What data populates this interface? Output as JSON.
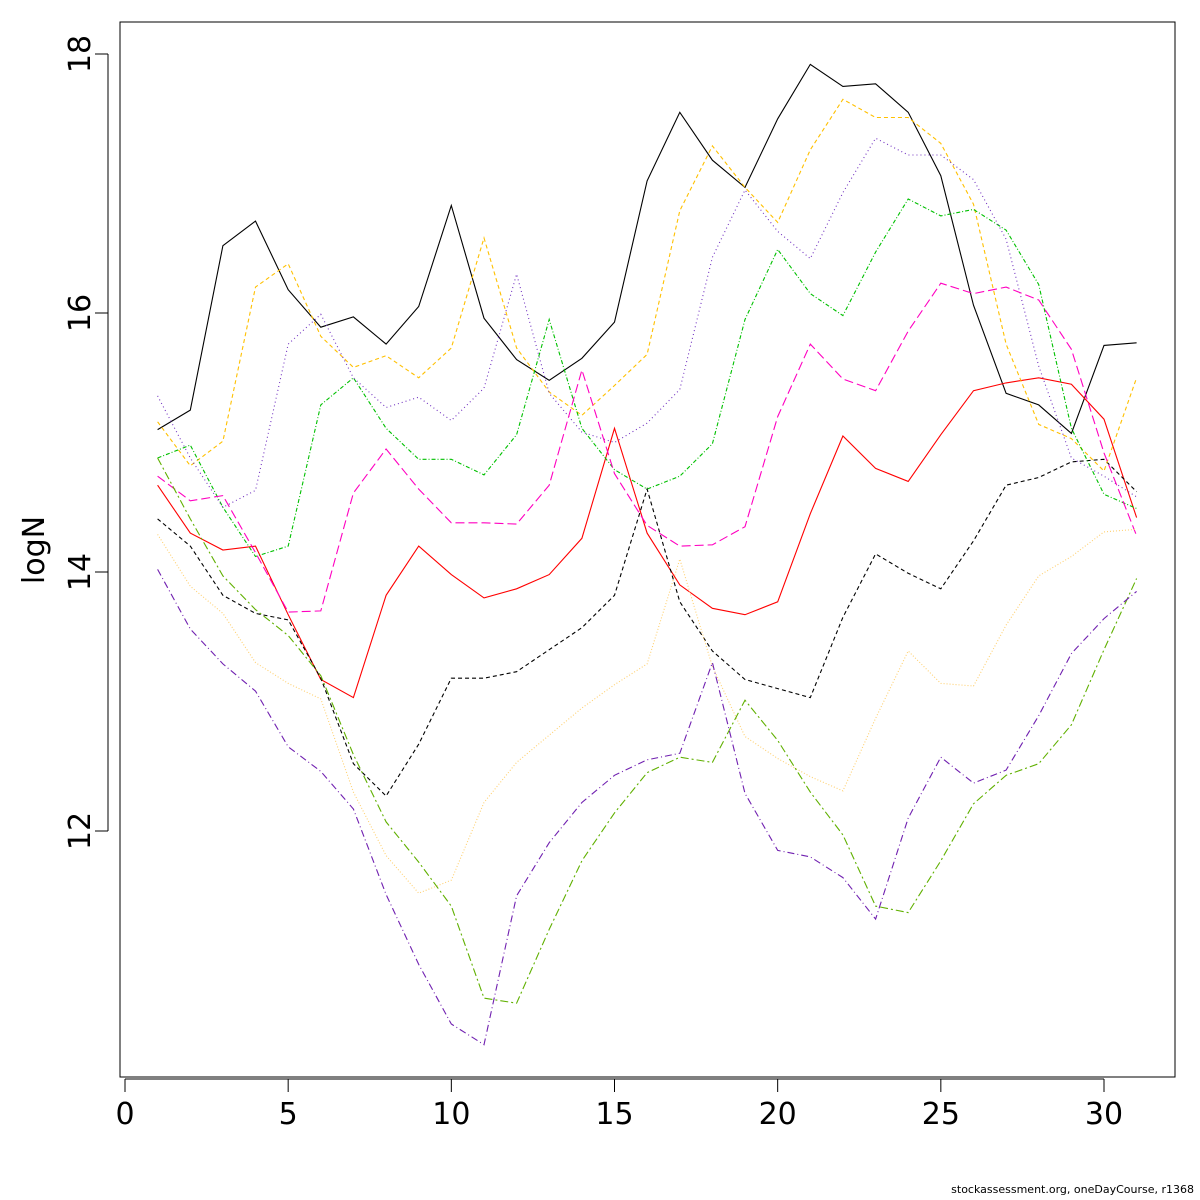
{
  "chart_data": {
    "type": "line",
    "title": "",
    "xlabel": "",
    "ylabel": "logN",
    "xlim": [
      0,
      32
    ],
    "ylim": [
      10.2,
      18.2
    ],
    "x_ticks": [
      0,
      5,
      10,
      15,
      20,
      25,
      30
    ],
    "y_ticks": [
      12,
      14,
      16,
      18
    ],
    "grid": false,
    "legend": "none",
    "x": [
      1,
      2,
      3,
      4,
      5,
      6,
      7,
      8,
      9,
      10,
      11,
      12,
      13,
      14,
      15,
      16,
      17,
      18,
      19,
      20,
      21,
      22,
      23,
      24,
      25,
      26,
      27,
      28,
      29,
      30,
      31
    ],
    "series": [
      {
        "color": "#000000",
        "dash": "",
        "values": [
          15.1,
          15.25,
          16.52,
          16.71,
          16.18,
          15.89,
          15.97,
          15.76,
          16.05,
          16.83,
          15.96,
          15.64,
          15.48,
          15.65,
          15.93,
          17.02,
          17.55,
          17.18,
          16.97,
          17.5,
          17.92,
          17.75,
          17.77,
          17.55,
          17.06,
          16.06,
          15.38,
          15.29,
          15.07,
          15.75,
          15.77
        ]
      },
      {
        "color": "#FF0000",
        "dash": "",
        "values": [
          14.67,
          14.3,
          14.17,
          14.2,
          13.67,
          13.17,
          13.03,
          13.82,
          14.2,
          13.98,
          13.8,
          13.87,
          13.98,
          14.26,
          15.11,
          14.3,
          13.9,
          13.72,
          13.67,
          13.77,
          14.45,
          15.05,
          14.8,
          14.7,
          15.06,
          15.4,
          15.46,
          15.5,
          15.45,
          15.18,
          14.42
        ]
      },
      {
        "color": "#000000",
        "dash": "4,3",
        "values": [
          14.41,
          14.2,
          13.82,
          13.68,
          13.63,
          13.18,
          12.52,
          12.27,
          12.67,
          13.18,
          13.18,
          13.23,
          13.4,
          13.57,
          13.82,
          14.64,
          13.77,
          13.39,
          13.17,
          13.1,
          13.03,
          13.65,
          14.14,
          13.99,
          13.87,
          14.24,
          14.67,
          14.73,
          14.85,
          14.87,
          14.62
        ]
      },
      {
        "color": "#FFC000",
        "dash": "4,3",
        "values": [
          15.16,
          14.82,
          15.01,
          16.2,
          16.38,
          15.82,
          15.58,
          15.67,
          15.5,
          15.73,
          16.58,
          15.73,
          15.39,
          15.21,
          15.44,
          15.68,
          16.79,
          17.29,
          16.97,
          16.7,
          17.26,
          17.65,
          17.51,
          17.51,
          17.31,
          16.84,
          15.76,
          15.14,
          15.03,
          14.78,
          15.5
        ]
      },
      {
        "color": "#00C000",
        "dash": "4,2,1,2",
        "values": [
          14.88,
          14.98,
          14.5,
          14.12,
          14.2,
          15.29,
          15.5,
          15.11,
          14.87,
          14.87,
          14.75,
          15.06,
          15.95,
          15.11,
          14.79,
          14.64,
          14.74,
          14.99,
          15.95,
          16.49,
          16.15,
          15.98,
          16.47,
          16.88,
          16.75,
          16.8,
          16.64,
          16.22,
          15.11,
          14.6,
          14.49
        ]
      },
      {
        "color": "#7030C0",
        "dash": "1,3",
        "values": [
          15.36,
          14.88,
          14.5,
          14.63,
          15.76,
          15.99,
          15.5,
          15.27,
          15.35,
          15.17,
          15.42,
          16.3,
          15.38,
          15.08,
          15.0,
          15.15,
          15.41,
          16.43,
          16.95,
          16.63,
          16.42,
          16.93,
          17.35,
          17.22,
          17.22,
          17.03,
          16.57,
          15.59,
          14.88,
          14.74,
          14.58
        ]
      },
      {
        "color": "#FF00C0",
        "dash": "9,4",
        "values": [
          14.74,
          14.55,
          14.59,
          14.15,
          13.69,
          13.7,
          14.61,
          14.95,
          14.64,
          14.38,
          14.38,
          14.37,
          14.67,
          15.56,
          14.76,
          14.36,
          14.2,
          14.21,
          14.35,
          15.2,
          15.76,
          15.49,
          15.4,
          15.86,
          16.23,
          16.15,
          16.2,
          16.1,
          15.72,
          14.92,
          14.28
        ]
      },
      {
        "color": "#FFD070",
        "dash": "1,2",
        "values": [
          14.29,
          13.89,
          13.68,
          13.3,
          13.14,
          13.02,
          12.3,
          11.81,
          11.52,
          11.62,
          12.22,
          12.53,
          12.74,
          12.95,
          13.13,
          13.29,
          14.1,
          13.27,
          12.73,
          12.56,
          12.42,
          12.31,
          12.87,
          13.39,
          13.14,
          13.12,
          13.59,
          13.97,
          14.12,
          14.31,
          14.33
        ]
      },
      {
        "color": "#60B000",
        "dash": "8,3,2,3",
        "values": [
          14.88,
          14.41,
          13.97,
          13.71,
          13.51,
          13.2,
          12.59,
          12.07,
          11.76,
          11.42,
          10.71,
          10.67,
          11.24,
          11.77,
          12.14,
          12.45,
          12.57,
          12.53,
          13.01,
          12.7,
          12.3,
          11.97,
          11.42,
          11.37,
          11.77,
          12.21,
          12.43,
          12.52,
          12.82,
          13.4,
          13.95
        ]
      },
      {
        "color": "#7020B0",
        "dash": "7,3,1,3",
        "values": [
          14.02,
          13.56,
          13.29,
          13.08,
          12.65,
          12.46,
          12.17,
          11.51,
          10.97,
          10.51,
          10.35,
          11.5,
          11.91,
          12.22,
          12.43,
          12.55,
          12.6,
          13.3,
          12.29,
          11.85,
          11.8,
          11.64,
          11.32,
          12.1,
          12.57,
          12.37,
          12.47,
          12.89,
          13.37,
          13.64,
          13.85
        ]
      }
    ]
  },
  "footer": {
    "credit": "stockassessment.org, oneDayCourse, r1368"
  }
}
